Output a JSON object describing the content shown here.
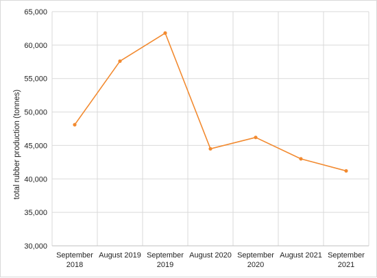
{
  "chart_data": {
    "type": "line",
    "title": "",
    "xlabel": "",
    "ylabel": "total rubber production (tonnes)",
    "categories": [
      [
        "September",
        "2018"
      ],
      [
        "August 2019"
      ],
      [
        "September",
        "2019"
      ],
      [
        "August 2020"
      ],
      [
        "September",
        "2020"
      ],
      [
        "August 2021"
      ],
      [
        "September",
        "2021"
      ]
    ],
    "series": [
      {
        "values": [
          48100,
          57600,
          61800,
          44500,
          46200,
          43000,
          41200
        ],
        "color": "#f28a30"
      }
    ],
    "ylim": [
      30000,
      65000
    ],
    "yticks": [
      {
        "value": 30000,
        "label": "30,000"
      },
      {
        "value": 35000,
        "label": "35,000"
      },
      {
        "value": 40000,
        "label": "40,000"
      },
      {
        "value": 45000,
        "label": "45,000"
      },
      {
        "value": 50000,
        "label": "50,000"
      },
      {
        "value": 55000,
        "label": "55,000"
      },
      {
        "value": 60000,
        "label": "60,000"
      },
      {
        "value": 65000,
        "label": "65,000"
      }
    ],
    "grid": true,
    "legend": "none"
  }
}
